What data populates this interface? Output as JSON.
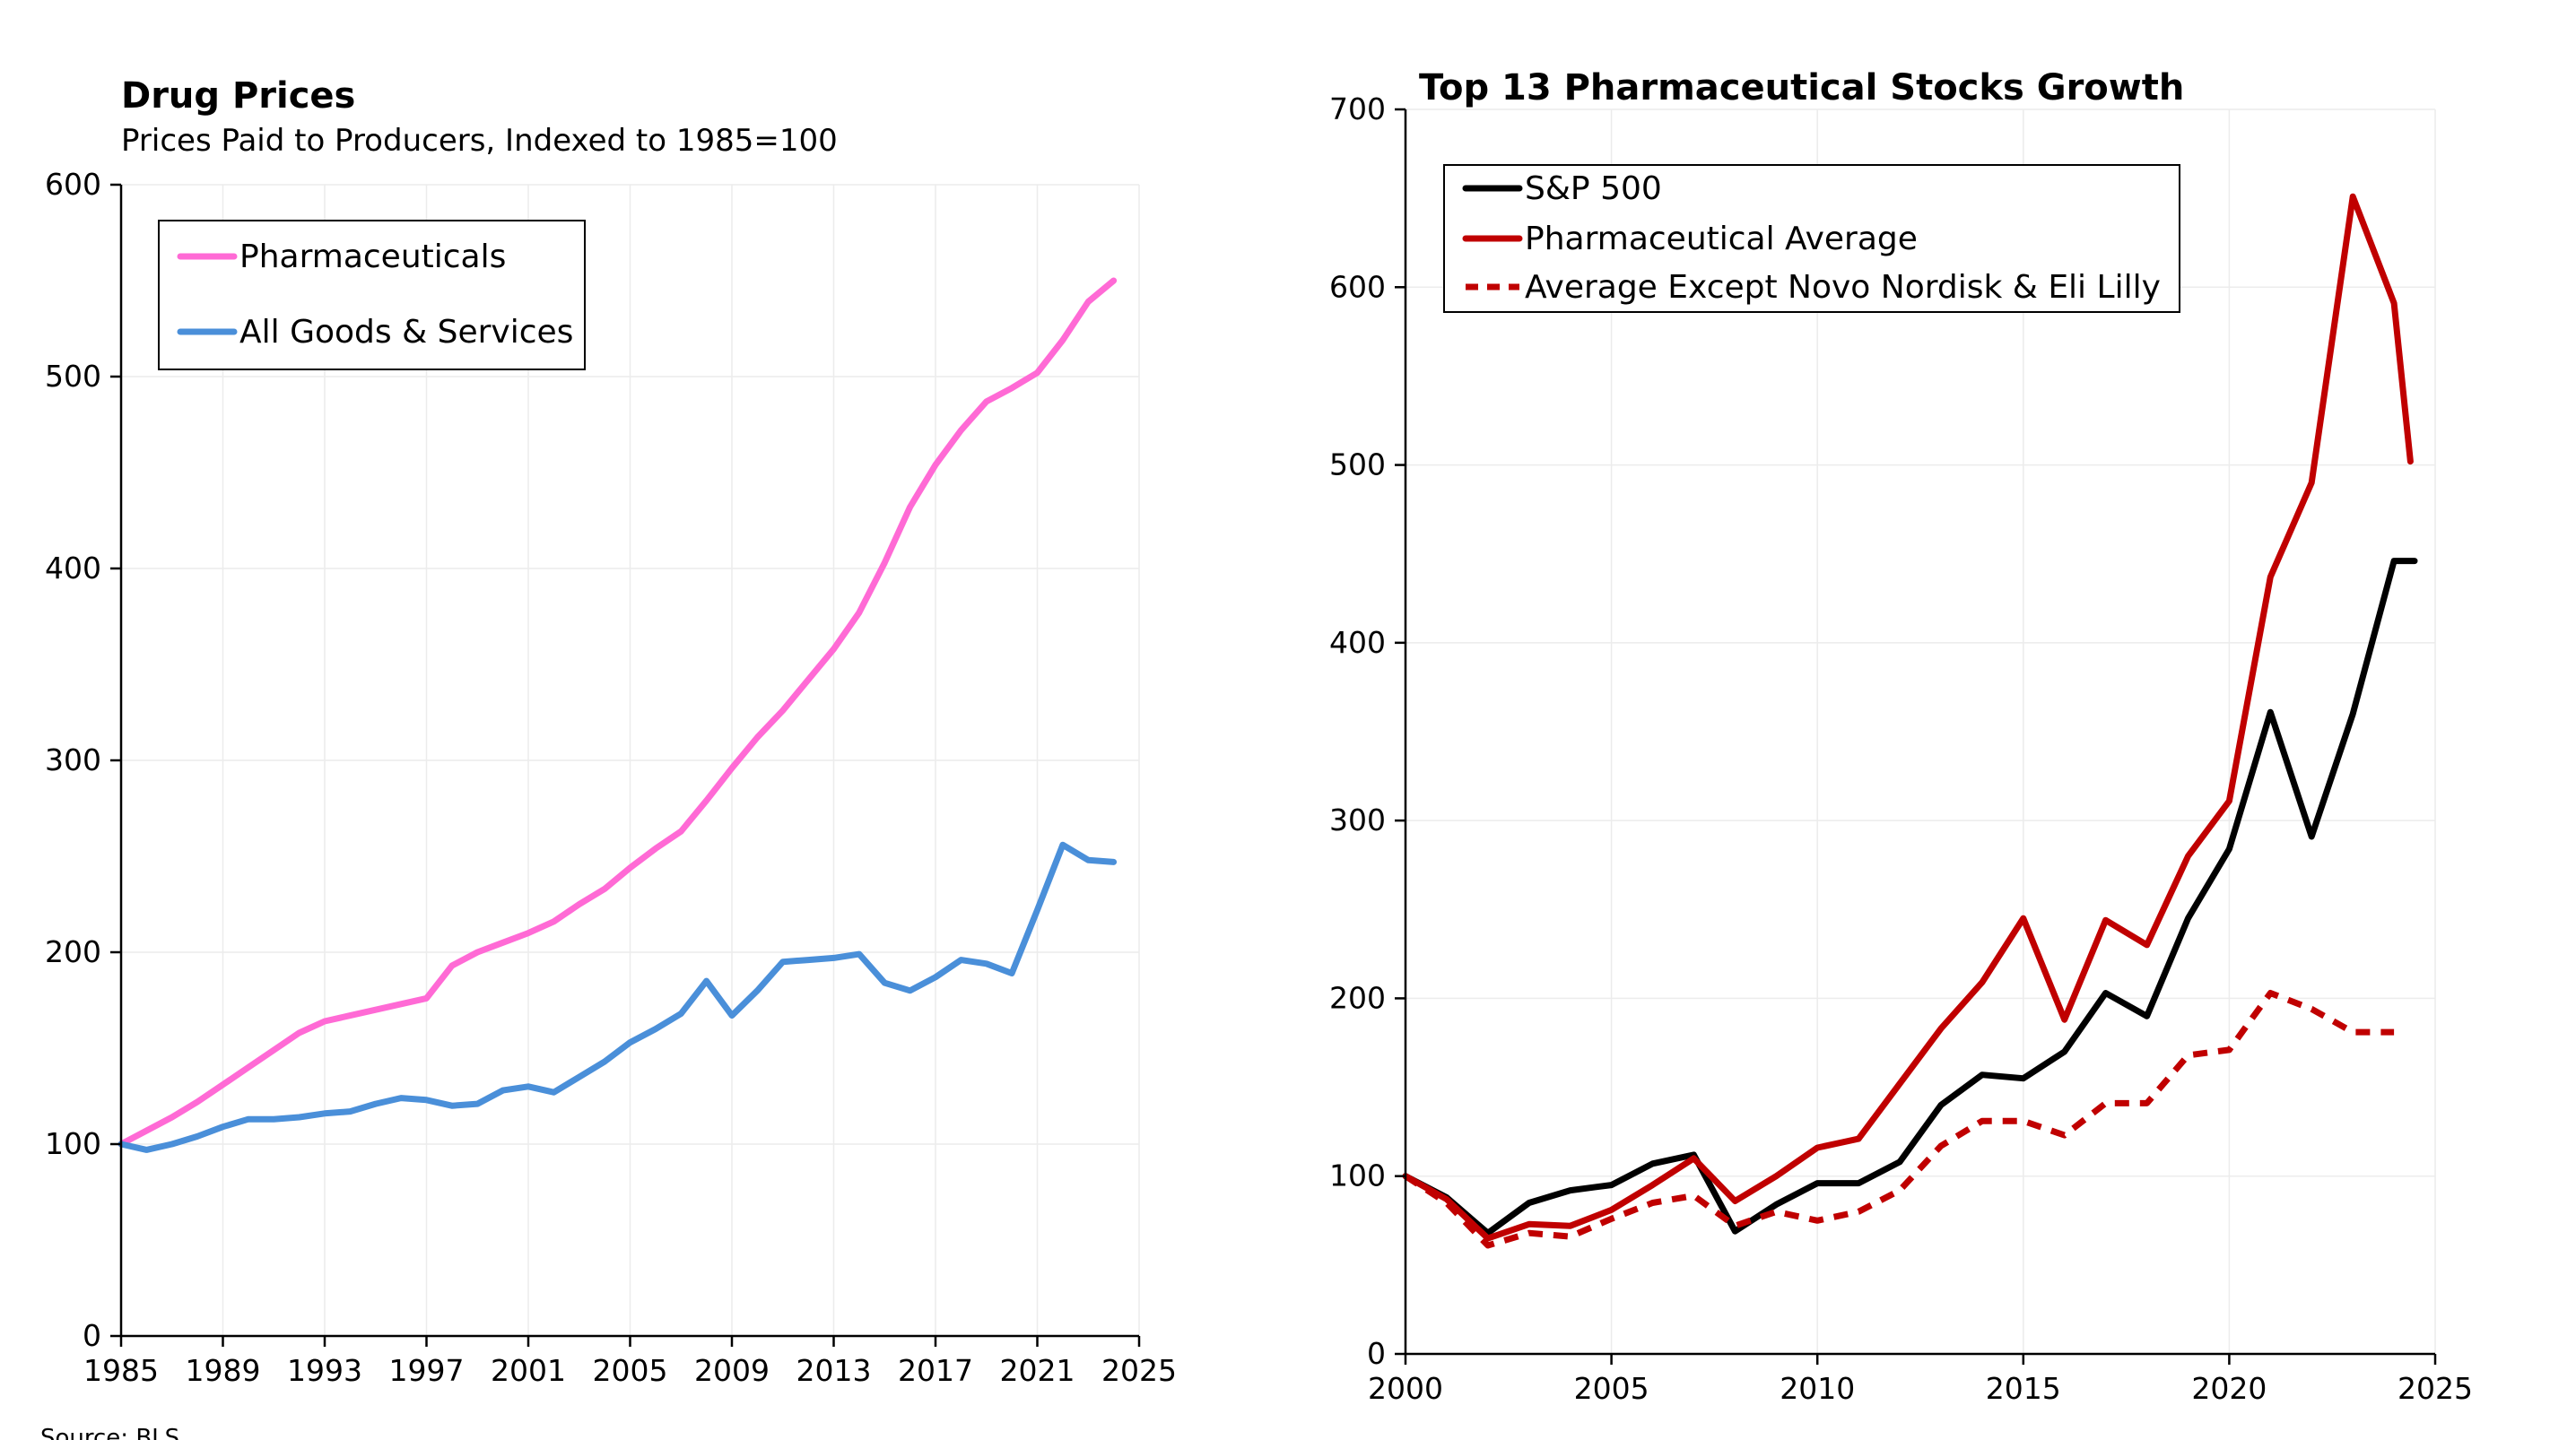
{
  "source": "Source: BLS",
  "chart_data": [
    {
      "type": "line",
      "title": "Drug Prices",
      "subtitle": "Prices Paid to Producers, Indexed to 1985=100",
      "xlabel": "",
      "ylabel": "",
      "xlim": [
        1985,
        2025
      ],
      "ylim": [
        0,
        600
      ],
      "xticks": [
        1985,
        1989,
        1993,
        1997,
        2001,
        2005,
        2009,
        2013,
        2017,
        2021,
        2025
      ],
      "yticks": [
        0,
        100,
        200,
        300,
        400,
        500,
        600
      ],
      "grid": true,
      "legend_position": "top-left",
      "series": [
        {
          "name": "Pharmaceuticals",
          "color": "#ff6ad5",
          "dash": "solid",
          "x": [
            1985,
            1986,
            1987,
            1988,
            1989,
            1990,
            1991,
            1992,
            1993,
            1994,
            1995,
            1996,
            1997,
            1998,
            1999,
            2000,
            2001,
            2002,
            2003,
            2004,
            2005,
            2006,
            2007,
            2008,
            2009,
            2010,
            2011,
            2012,
            2013,
            2014,
            2015,
            2016,
            2017,
            2018,
            2019,
            2020,
            2021,
            2022,
            2023,
            2024
          ],
          "y": [
            100,
            107,
            114,
            122,
            131,
            140,
            149,
            158,
            164,
            167,
            170,
            173,
            176,
            193,
            200,
            205,
            210,
            216,
            225,
            233,
            244,
            254,
            263,
            279,
            296,
            312,
            326,
            342,
            358,
            377,
            403,
            432,
            454,
            472,
            487,
            494,
            502,
            519,
            539,
            550
          ]
        },
        {
          "name": "All Goods & Services",
          "color": "#4a8fd9",
          "dash": "solid",
          "x": [
            1985,
            1986,
            1987,
            1988,
            1989,
            1990,
            1991,
            1992,
            1993,
            1994,
            1995,
            1996,
            1997,
            1998,
            1999,
            2000,
            2001,
            2002,
            2003,
            2004,
            2005,
            2006,
            2007,
            2008,
            2009,
            2010,
            2011,
            2012,
            2013,
            2014,
            2015,
            2016,
            2017,
            2018,
            2019,
            2020,
            2021,
            2022,
            2023,
            2024
          ],
          "y": [
            100,
            97,
            100,
            104,
            109,
            113,
            113,
            114,
            116,
            117,
            121,
            124,
            123,
            120,
            121,
            128,
            130,
            127,
            135,
            143,
            153,
            160,
            168,
            185,
            167,
            180,
            195,
            196,
            197,
            199,
            184,
            180,
            187,
            196,
            194,
            189,
            222,
            256,
            248,
            247
          ]
        }
      ]
    },
    {
      "type": "line",
      "title": "Top 13 Pharmaceutical Stocks Growth",
      "xlabel": "",
      "ylabel": "",
      "xlim": [
        2000,
        2025
      ],
      "ylim": [
        0,
        700
      ],
      "xticks": [
        2000,
        2005,
        2010,
        2015,
        2020,
        2025
      ],
      "yticks": [
        0,
        100,
        200,
        300,
        400,
        500,
        600,
        700
      ],
      "grid": true,
      "legend_position": "top-left",
      "series": [
        {
          "name": "S&P 500",
          "color": "#000000",
          "dash": "solid",
          "x": [
            2000,
            2001,
            2002,
            2003,
            2004,
            2005,
            2006,
            2007,
            2008,
            2009,
            2010,
            2011,
            2012,
            2013,
            2014,
            2015,
            2016,
            2017,
            2018,
            2019,
            2020,
            2021,
            2022,
            2023,
            2024,
            2024.5
          ],
          "y": [
            100,
            88,
            68,
            85,
            92,
            95,
            107,
            112,
            69,
            84,
            96,
            96,
            108,
            140,
            157,
            155,
            170,
            203,
            190,
            245,
            284,
            361,
            291,
            360,
            446,
            446
          ]
        },
        {
          "name": "Pharmaceutical Average",
          "color": "#c00000",
          "dash": "solid",
          "x": [
            2000,
            2001,
            2002,
            2003,
            2004,
            2005,
            2006,
            2007,
            2008,
            2009,
            2010,
            2011,
            2012,
            2013,
            2014,
            2015,
            2016,
            2017,
            2018,
            2019,
            2020,
            2021,
            2022,
            2023,
            2024,
            2024.4
          ],
          "y": [
            100,
            87,
            65,
            73,
            72,
            81,
            95,
            110,
            86,
            100,
            116,
            121,
            152,
            183,
            209,
            245,
            188,
            244,
            230,
            280,
            311,
            437,
            490,
            651,
            591,
            502
          ]
        },
        {
          "name": "Average Except Novo Nordisk & Eli Lilly",
          "color": "#c00000",
          "dash": "dashed",
          "x": [
            2000,
            2001,
            2002,
            2003,
            2004,
            2005,
            2006,
            2007,
            2008,
            2009,
            2010,
            2011,
            2012,
            2013,
            2014,
            2015,
            2016,
            2017,
            2018,
            2019,
            2020,
            2021,
            2022,
            2023,
            2024
          ],
          "y": [
            100,
            85,
            61,
            68,
            66,
            76,
            85,
            89,
            72,
            80,
            75,
            80,
            92,
            117,
            131,
            131,
            123,
            141,
            141,
            168,
            171,
            203,
            194,
            181,
            181
          ]
        }
      ]
    }
  ]
}
